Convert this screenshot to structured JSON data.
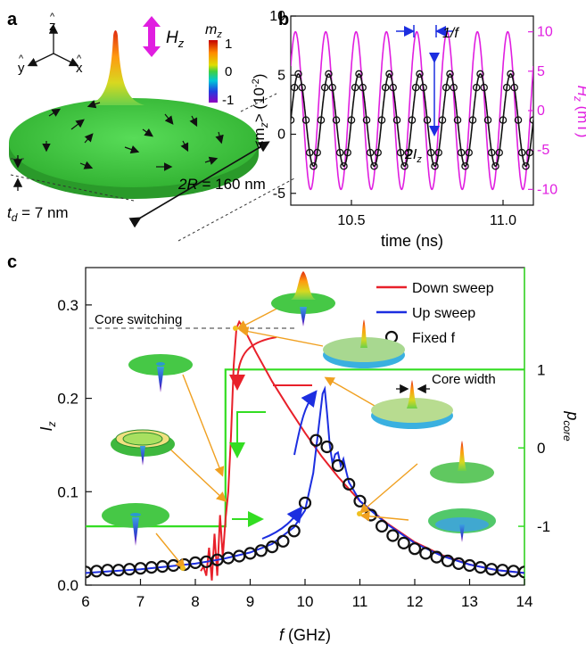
{
  "panels": {
    "a": {
      "label": "a",
      "axes": {
        "z": "z",
        "y": "y",
        "x": "x"
      },
      "field_label": "H",
      "field_sub": "z",
      "colorbar": {
        "title": "m",
        "title_sub": "z",
        "ticks": [
          "1",
          "0",
          "-1"
        ]
      },
      "thickness_label": "t",
      "thickness_sub": "d",
      "thickness_value": " = 7 nm",
      "diameter_label": "2R",
      "diameter_value": " = 160 nm"
    },
    "b": {
      "label": "b",
      "period_label": "1/f",
      "amp_label": "2I",
      "amp_sub": "z"
    },
    "c": {
      "label": "c",
      "annotations": {
        "core_switching": "Core switching",
        "core_width": "Core width"
      }
    }
  },
  "colors": {
    "down_sweep": "#e8202a",
    "up_sweep": "#1c2ee0",
    "fixed": "#111111",
    "p_core": "#33dd22",
    "field": "#e01ee0",
    "annotation_arrow": "#f0a020",
    "disk": "#3ec83e"
  },
  "chart_data": [
    {
      "id": "b",
      "type": "line",
      "xlabel": "time (ns)",
      "ylabel": "<m",
      "ylabel_sub": "z",
      "ylabel_tail": "> (10",
      "ylabel_sup": "-2",
      "ylabel_end": ")",
      "y2label": "H",
      "y2label_sub": "z",
      "y2label_unit": " (mT)",
      "xlim": [
        10.3,
        11.1
      ],
      "ylim": [
        -6,
        10
      ],
      "y2lim": [
        -12,
        12
      ],
      "xticks": [
        "10.5",
        "11.0"
      ],
      "xtick_values": [
        10.5,
        11.0
      ],
      "yticks": [
        "-5",
        "0",
        "5",
        "10"
      ],
      "ytick_values": [
        -5,
        0,
        5,
        10
      ],
      "y2ticks": [
        "-10",
        "-5",
        "0",
        "5",
        "10"
      ],
      "y2tick_values": [
        -10,
        -5,
        0,
        5,
        10
      ],
      "series": [
        {
          "kind": "mz",
          "mean": 1.2,
          "amplitude": 3.9,
          "frequency_ghz": 10.0
        },
        {
          "kind": "hz",
          "amplitude": 10.0,
          "frequency_ghz": 10.0
        }
      ]
    },
    {
      "id": "c",
      "type": "line",
      "xlabel": "f",
      "xlabel_unit": " (GHz)",
      "ylabel": "I",
      "ylabel_sub": "z",
      "y2label": "p",
      "y2label_sub": "core",
      "xlim": [
        6,
        14
      ],
      "ylim": [
        0,
        0.34
      ],
      "y2lim": [
        -1.75,
        2.3
      ],
      "xticks": [
        "6",
        "7",
        "8",
        "9",
        "10",
        "11",
        "12",
        "13",
        "14"
      ],
      "xtick_values": [
        6,
        7,
        8,
        9,
        10,
        11,
        12,
        13,
        14
      ],
      "yticks": [
        "0.0",
        "0.1",
        "0.2",
        "0.3"
      ],
      "ytick_values": [
        0.0,
        0.1,
        0.2,
        0.3
      ],
      "y2ticks": [
        "-1",
        "0",
        "1"
      ],
      "y2tick_values": [
        -1,
        0,
        1
      ],
      "legend": {
        "position": "top-right",
        "entries": [
          "Down sweep",
          "Up sweep",
          "Fixed f"
        ]
      },
      "series": [
        {
          "name": "Down sweep",
          "x": [
            14.0,
            13.5,
            13.0,
            12.5,
            12.0,
            11.5,
            11.0,
            10.6,
            10.3,
            10.0,
            9.7,
            9.4,
            9.1,
            8.9,
            8.8,
            8.75,
            8.7,
            8.65,
            8.6,
            8.55,
            8.5,
            8.45,
            8.4,
            8.35,
            8.3,
            8.25,
            8.2,
            8.15,
            8.1
          ],
          "y": [
            0.013,
            0.016,
            0.022,
            0.032,
            0.046,
            0.066,
            0.09,
            0.116,
            0.138,
            0.163,
            0.19,
            0.218,
            0.25,
            0.273,
            0.282,
            0.275,
            0.235,
            0.16,
            0.1,
            0.07,
            0.03,
            0.075,
            0.01,
            0.055,
            0.005,
            0.04,
            0.01,
            0.02,
            0.015
          ]
        },
        {
          "name": "Up sweep",
          "x": [
            6.0,
            6.5,
            7.0,
            7.5,
            8.0,
            8.5,
            9.0,
            9.4,
            9.8,
            10.0,
            10.15,
            10.25,
            10.32,
            10.36,
            10.4,
            10.45,
            10.5,
            10.55,
            10.6,
            10.65,
            10.7,
            10.75,
            10.8,
            10.9,
            11.0,
            11.5,
            12.0,
            12.5,
            13.0,
            13.5,
            14.0
          ],
          "y": [
            0.013,
            0.015,
            0.017,
            0.02,
            0.023,
            0.028,
            0.035,
            0.044,
            0.062,
            0.08,
            0.12,
            0.17,
            0.205,
            0.21,
            0.185,
            0.15,
            0.13,
            0.14,
            0.142,
            0.128,
            0.135,
            0.122,
            0.11,
            0.1,
            0.09,
            0.065,
            0.045,
            0.031,
            0.022,
            0.016,
            0.013
          ]
        },
        {
          "name": "Fixed f",
          "x": [
            6.0,
            6.2,
            6.4,
            6.6,
            6.8,
            7.0,
            7.2,
            7.4,
            7.6,
            7.8,
            8.0,
            8.2,
            8.4,
            8.6,
            8.8,
            9.0,
            9.2,
            9.4,
            9.6,
            9.8,
            10.0,
            10.2,
            10.4,
            10.6,
            10.8,
            11.0,
            11.2,
            11.4,
            11.6,
            11.8,
            12.0,
            12.2,
            12.4,
            12.6,
            12.8,
            13.0,
            13.2,
            13.4,
            13.6,
            13.8,
            14.0
          ],
          "y": [
            0.014,
            0.015,
            0.016,
            0.016,
            0.017,
            0.018,
            0.019,
            0.02,
            0.021,
            0.022,
            0.024,
            0.025,
            0.027,
            0.029,
            0.031,
            0.034,
            0.037,
            0.041,
            0.047,
            0.058,
            0.088,
            0.155,
            0.148,
            0.128,
            0.108,
            0.09,
            0.075,
            0.063,
            0.053,
            0.045,
            0.039,
            0.034,
            0.03,
            0.026,
            0.023,
            0.021,
            0.019,
            0.017,
            0.016,
            0.015,
            0.014
          ]
        },
        {
          "kind": "p_core",
          "x": [
            6.0,
            8.55,
            8.55,
            14.0
          ],
          "y": [
            -1,
            -1,
            1,
            1
          ]
        }
      ]
    }
  ]
}
